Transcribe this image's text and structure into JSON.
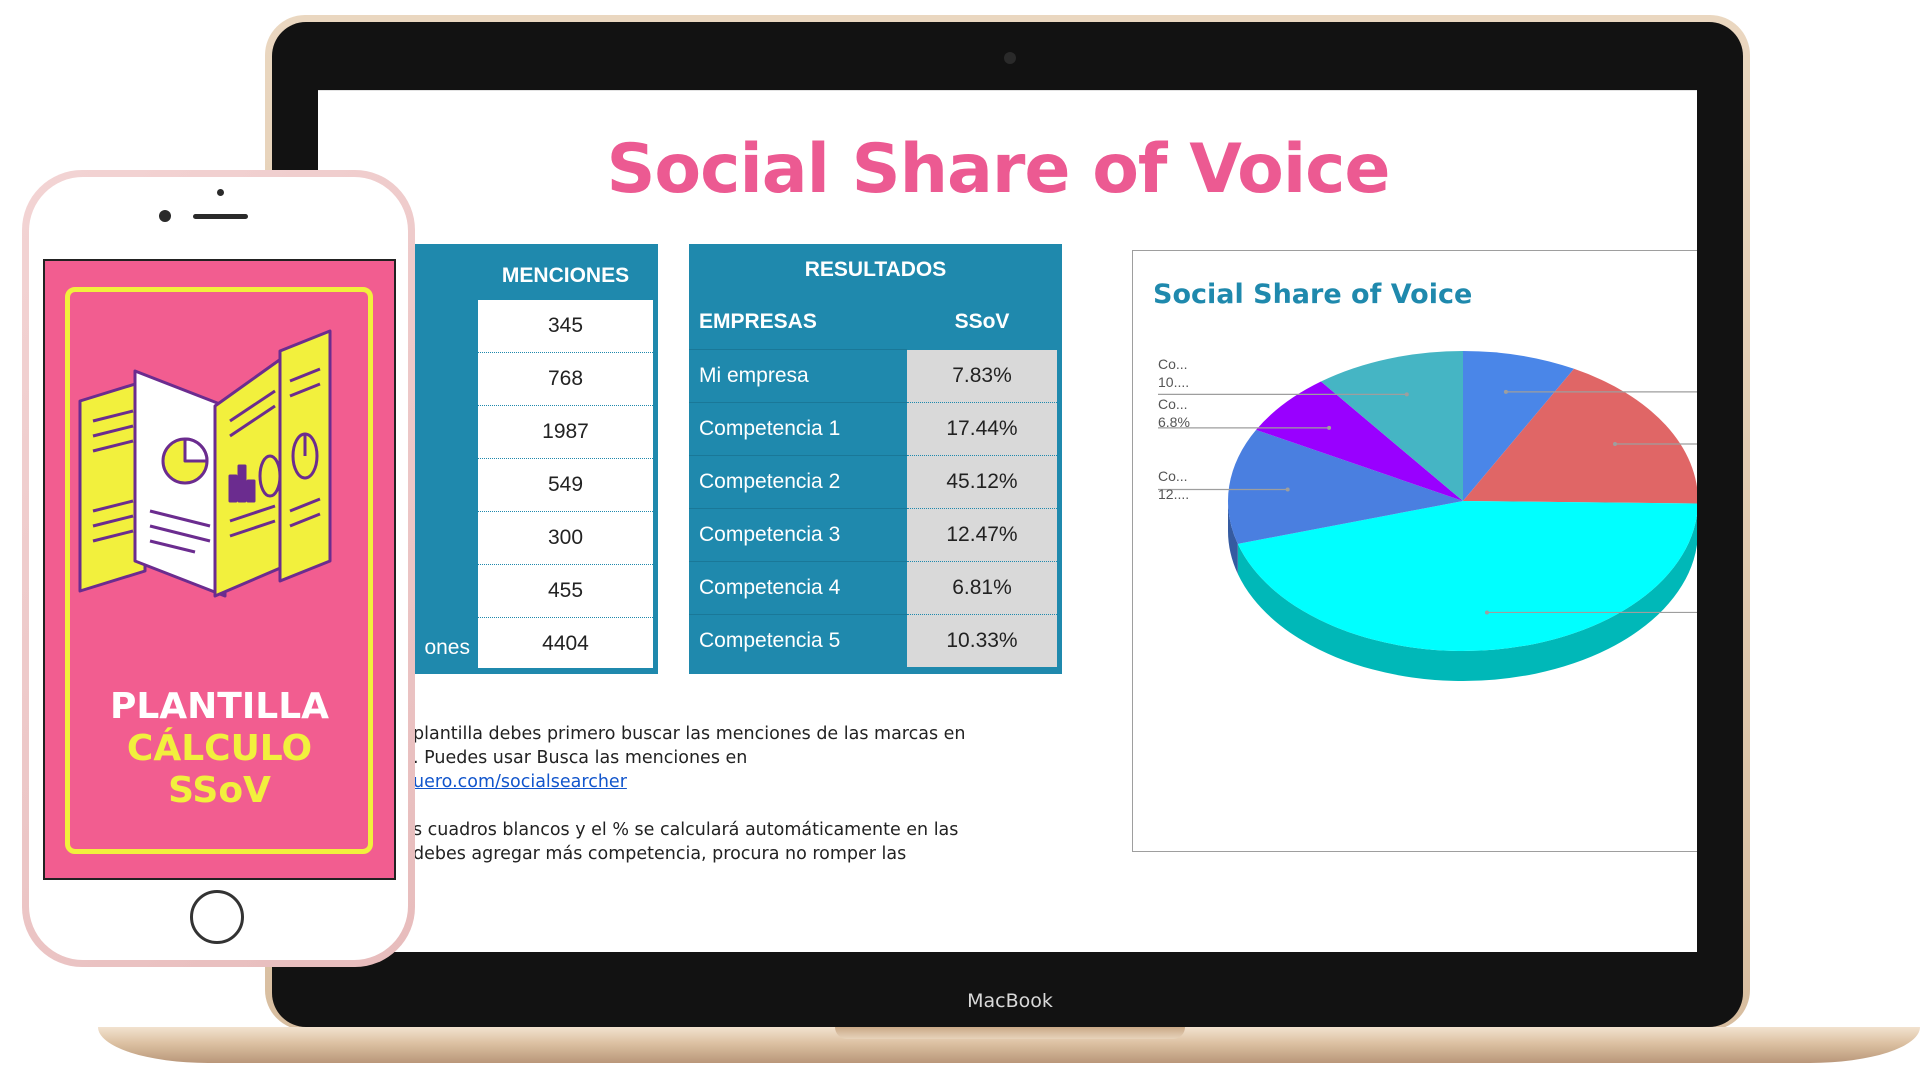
{
  "laptop": {
    "brand": "MacBook"
  },
  "sheet": {
    "title": "Social Share of Voice",
    "menciones": {
      "header": "MENCIONES",
      "values": [
        "345",
        "768",
        "1987",
        "549",
        "300",
        "455",
        "4404"
      ],
      "left_label_fragment": "ones"
    },
    "resultados": {
      "header": "RESULTADOS",
      "col_empresas": "EMPRESAS",
      "col_ssov": "SSoV",
      "rows": [
        {
          "empresa": "Mi empresa",
          "ssov": "7.83%"
        },
        {
          "empresa": "Competencia 1",
          "ssov": "17.44%"
        },
        {
          "empresa": "Competencia 2",
          "ssov": "45.12%"
        },
        {
          "empresa": "Competencia 3",
          "ssov": "12.47%"
        },
        {
          "empresa": "Competencia 4",
          "ssov": "6.81%"
        },
        {
          "empresa": "Competencia 5",
          "ssov": "10.33%"
        }
      ]
    },
    "instructions": {
      "line1": "plantilla debes primero buscar las menciones de las marcas en",
      "line2": ". Puedes usar Busca las menciones en",
      "link": "uero.com/socialsearcher",
      "line4": "s cuadros blancos y el % se calculará automáticamente en las",
      "line5": "debes agregar más competencia, procura no romper las"
    }
  },
  "chart_data": {
    "type": "pie",
    "title": "Social Share of Voice",
    "categories": [
      "Mi empresa",
      "Competencia 1",
      "Competencia 2",
      "Competencia 3",
      "Competencia 4",
      "Competencia 5"
    ],
    "values": [
      7.83,
      17.44,
      45.12,
      12.47,
      6.81,
      10.33
    ],
    "colors": [
      "#4a86e8",
      "#e06666",
      "#00ffff",
      "#4a7fe0",
      "#9900ff",
      "#45b5c4"
    ],
    "visible_labels": [
      {
        "line1": "Co...",
        "line2": "10...."
      },
      {
        "line1": "Co...",
        "line2": "6.8%"
      },
      {
        "line1": "Co...",
        "line2": "12...."
      }
    ],
    "style": "3d"
  },
  "phone": {
    "line1": "PLANTILLA",
    "line2": "CÁLCULO",
    "line3": "SSoV",
    "bg_color": "#f25d90",
    "accent_color": "#f2f03d"
  }
}
